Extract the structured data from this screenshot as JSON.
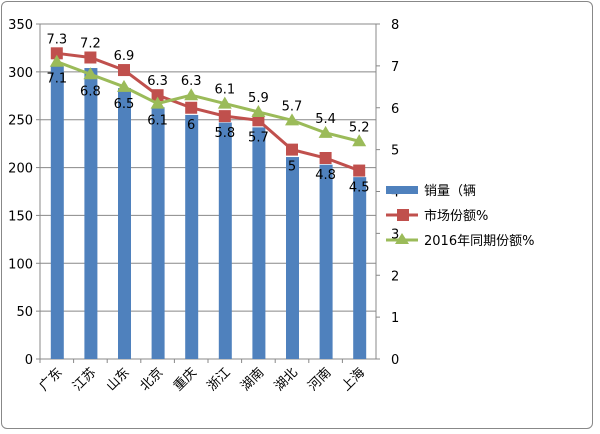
{
  "chart_data": {
    "type": "bar",
    "categories": [
      "广东",
      "江苏",
      "山东",
      "北京",
      "重庆",
      "浙江",
      "湖南",
      "湖北",
      "河南",
      "上海"
    ],
    "series": [
      {
        "name": "销量（辆",
        "type": "bar",
        "axis": "left",
        "color": "#4f81bd",
        "values": [
          306,
          304,
          283,
          263,
          255,
          247,
          242,
          211,
          203,
          190
        ]
      },
      {
        "name": "市场份额%",
        "type": "line",
        "axis": "right",
        "color": "#c0504d",
        "marker": "square",
        "values": [
          7.3,
          7.2,
          6.9,
          6.3,
          6,
          5.8,
          5.7,
          5,
          4.8,
          4.5
        ]
      },
      {
        "name": "2016年同期份额%",
        "type": "line",
        "axis": "right",
        "color": "#9bbb59",
        "marker": "triangle",
        "values": [
          7.1,
          6.8,
          6.5,
          6.1,
          6.3,
          6.1,
          5.9,
          5.7,
          5.4,
          5.2
        ]
      }
    ],
    "y_left": {
      "range": [
        0,
        350
      ],
      "ticks": [
        0,
        50,
        100,
        150,
        200,
        250,
        300,
        350
      ]
    },
    "y_right": {
      "range": [
        0,
        8
      ],
      "ticks": [
        0,
        1,
        2,
        3,
        4,
        5,
        6,
        7,
        8
      ]
    },
    "grid": true,
    "legend": "right"
  }
}
